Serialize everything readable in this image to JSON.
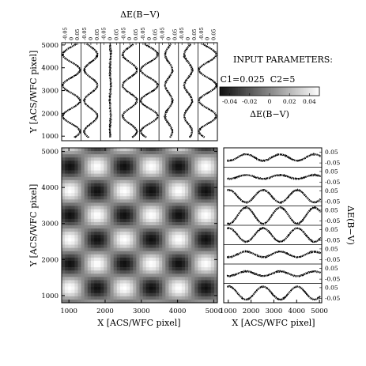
{
  "params": {
    "heading": "INPUT PARAMETERS:",
    "values": "C1=0.025  C2=5",
    "colorbar_ticks": [
      "-0.04",
      "-0.02",
      "0",
      "0.02",
      "0.04"
    ],
    "colorbar_label": "ΔE(B−V)"
  },
  "chart_data": [
    {
      "type": "heatmap",
      "panel": "main",
      "xlabel": "X [ACS/WFC pixel]",
      "ylabel": "Y [ACS/WFC pixel]",
      "xlim": [
        800,
        5100
      ],
      "ylim": [
        800,
        5100
      ],
      "xticks": [
        "1000",
        "2000",
        "3000",
        "4000",
        "5000"
      ],
      "yticks": [
        "1000",
        "2000",
        "3000",
        "4000",
        "5000"
      ],
      "colormap": "grayscale (black = -0.05, white = +0.05)",
      "z": "0.025 * sin(2*pi*x/1500 + 0.4) * sin(2*pi*y/1350 - 0.9) approx",
      "zlim": [
        -0.05,
        0.05
      ]
    },
    {
      "type": "scatter",
      "panel": "top-strips",
      "title": "ΔE(B−V)",
      "ylabel": "Y [ACS/WFC pixel]",
      "ylim": [
        800,
        5100
      ],
      "yticks": [
        "1000",
        "2000",
        "3000",
        "4000",
        "5000"
      ],
      "strip_ticks": [
        "-0.05",
        "0",
        "0.05"
      ],
      "strip_count": 8,
      "amplitude": 0.025
    },
    {
      "type": "scatter",
      "panel": "right-strips",
      "xlabel": "X [ACS/WFC pixel]",
      "ylabel": "ΔE(B−V)",
      "xlim": [
        800,
        5100
      ],
      "xticks": [
        "1000",
        "2000",
        "3000",
        "4000",
        "5000"
      ],
      "strip_ticks": [
        "0.05",
        "-0.05"
      ],
      "strip_count": 8,
      "amplitude": 0.025
    }
  ]
}
